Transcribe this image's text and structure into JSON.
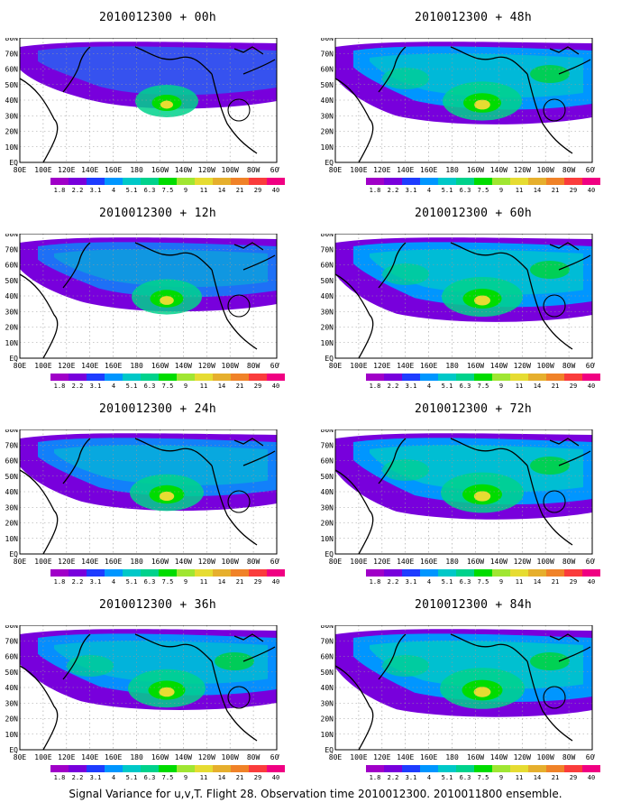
{
  "figure": {
    "caption": "Signal Variance for u,v,T. Flight 28. Observation time 2010012300. 2010011800 ensemble."
  },
  "panels": [
    {
      "title": "2010012300 + 00h",
      "intensity": 0.25
    },
    {
      "title": "2010012300 + 48h",
      "intensity": 0.7
    },
    {
      "title": "2010012300 + 12h",
      "intensity": 0.45
    },
    {
      "title": "2010012300 + 60h",
      "intensity": 0.75
    },
    {
      "title": "2010012300 + 24h",
      "intensity": 0.55
    },
    {
      "title": "2010012300 + 72h",
      "intensity": 0.8
    },
    {
      "title": "2010012300 + 36h",
      "intensity": 0.65
    },
    {
      "title": "2010012300 + 84h",
      "intensity": 0.85
    }
  ],
  "map_axes": {
    "lat_labels": [
      "80N",
      "70N",
      "60N",
      "50N",
      "40N",
      "30N",
      "20N",
      "10N",
      "EQ"
    ],
    "lon_labels": [
      "80E",
      "100E",
      "120E",
      "140E",
      "160E",
      "180",
      "160W",
      "140W",
      "120W",
      "100W",
      "80W",
      "60W"
    ]
  },
  "colorbar": {
    "levels": [
      "1.8",
      "2.2",
      "3.1",
      "4",
      "5.1",
      "6.3",
      "7.5",
      "9",
      "11",
      "14",
      "21",
      "29",
      "40"
    ],
    "colors": [
      "#a000c8",
      "#7800dc",
      "#1e3cff",
      "#0096ff",
      "#00c8c8",
      "#00d28c",
      "#00dc00",
      "#a0e632",
      "#e6dc32",
      "#e6af2d",
      "#f08228",
      "#fa3c3c",
      "#f00082"
    ]
  },
  "chart_data": {
    "type": "heatmap",
    "title": "Signal Variance for u,v,T. Flight 28. Observation time 2010012300. 2010011800 ensemble.",
    "forecast_hours": [
      0,
      12,
      24,
      36,
      48,
      60,
      72,
      84
    ],
    "levels": [
      1.8,
      2.2,
      3.1,
      4,
      5.1,
      6.3,
      7.5,
      9,
      11,
      14,
      21,
      29,
      40
    ],
    "lat_range": [
      "EQ",
      "80N"
    ],
    "lon_range": [
      "80E",
      "60W"
    ]
  }
}
